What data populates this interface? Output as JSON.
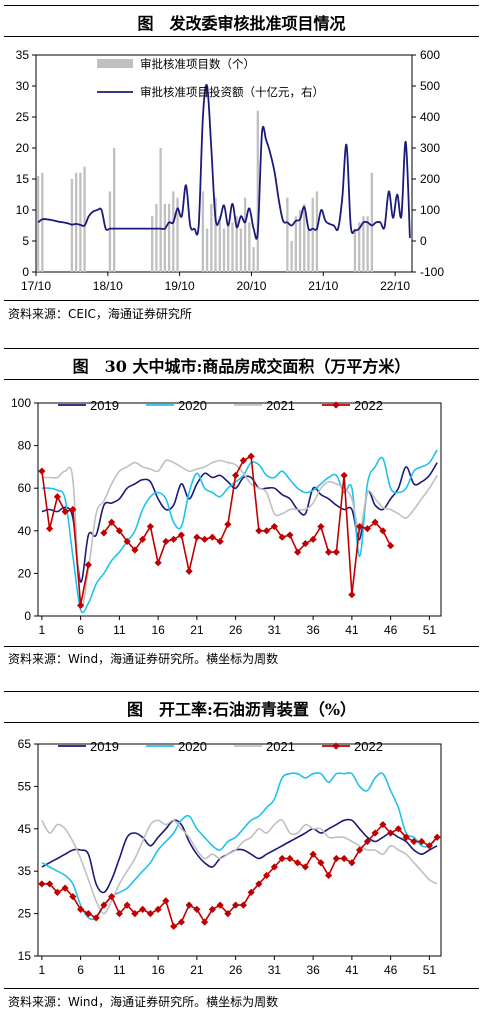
{
  "charts": [
    {
      "title": "图　发改委审核批准项目情况",
      "source": "资料来源：CEIC，海通证券研究所",
      "chart_data": {
        "type": "bar+line",
        "x_ticks": [
          "17/10",
          "18/10",
          "19/10",
          "20/10",
          "21/10",
          "22/10"
        ],
        "y_left": {
          "min": 0,
          "max": 35,
          "ticks": [
            "0",
            "5",
            "10",
            "15",
            "20",
            "25",
            "30",
            "35"
          ]
        },
        "y_right": {
          "min": -100,
          "max": 600,
          "ticks": [
            "-100",
            "0",
            "100",
            "200",
            "300",
            "400",
            "500",
            "600"
          ]
        },
        "legend": [
          "审批核准项目数（个）",
          "审批核准项目投资额（十亿元，右）"
        ],
        "bar_color": "#c0c0c0",
        "line_color": "#1a1a7a",
        "bars": [
          15.5,
          16,
          null,
          null,
          null,
          null,
          null,
          null,
          15,
          16,
          16,
          17,
          null,
          null,
          null,
          null,
          null,
          13,
          20,
          null,
          null,
          null,
          null,
          null,
          null,
          null,
          null,
          9,
          11,
          20,
          11,
          11,
          13,
          12,
          null,
          null,
          null,
          null,
          null,
          13,
          7,
          11,
          12,
          9,
          7,
          8,
          8,
          9,
          7,
          12,
          8,
          4,
          26,
          null,
          null,
          null,
          null,
          null,
          null,
          12,
          5,
          9,
          10,
          11,
          7,
          12,
          13,
          null,
          null,
          null,
          null,
          null,
          null,
          null,
          null,
          7,
          8,
          9,
          9,
          16,
          null,
          null
        ],
        "line": [
          60,
          70,
          70,
          68,
          65,
          62,
          60,
          57,
          53,
          55,
          52,
          50,
          80,
          95,
          100,
          100,
          40,
          40,
          40,
          40,
          40,
          40,
          40,
          40,
          40,
          40,
          40,
          40,
          40,
          40,
          40,
          60,
          60,
          105,
          80,
          180,
          50,
          40,
          50,
          400,
          500,
          300,
          70,
          70,
          115,
          50,
          120,
          45,
          80,
          60,
          105,
          40,
          30,
          350,
          325,
          280,
          220,
          130,
          65,
          60,
          50,
          65,
          70,
          110,
          40,
          40,
          40,
          100,
          65,
          55,
          50,
          40,
          140,
          310,
          50,
          35,
          40,
          60,
          60,
          50,
          60,
          60,
          45,
          160,
          75,
          150,
          80,
          320,
          10
        ],
        "line_ylim": [
          -100,
          600
        ]
      }
    },
    {
      "title": "图　30 大中城市:商品房成交面积（万平方米）",
      "source": "资料来源：Wind，海通证券研究所。横坐标为周数",
      "chart_data": {
        "type": "line",
        "ylim": [
          0,
          100
        ],
        "y_ticks": [
          "0",
          "20",
          "40",
          "60",
          "80",
          "100"
        ],
        "x_ticks": [
          "1",
          "6",
          "11",
          "16",
          "21",
          "26",
          "31",
          "36",
          "41",
          "46",
          "51"
        ],
        "series": [
          {
            "name": "2019",
            "color": "#1a1a7a",
            "values": [
              49,
              50,
              49,
              51,
              46,
              16,
              38,
              38,
              52,
              53,
              55,
              60,
              62,
              64,
              63,
              55,
              50,
              52,
              62,
              55,
              62,
              67,
              65,
              66,
              63,
              60,
              65,
              65,
              60,
              60,
              60,
              57,
              55,
              50,
              48,
              60,
              57,
              55,
              52,
              50,
              50,
              36,
              58,
              52,
              50,
              55,
              60,
              70,
              62,
              63,
              66,
              72
            ]
          },
          {
            "name": "2020",
            "color": "#1fc2ee",
            "values": [
              60,
              60,
              59,
              55,
              28,
              3,
              6,
              15,
              20,
              26,
              30,
              35,
              40,
              50,
              56,
              58,
              55,
              44,
              42,
              58,
              67,
              60,
              58,
              56,
              60,
              63,
              66,
              72,
              71,
              66,
              65,
              68,
              64,
              60,
              58,
              59,
              62,
              65,
              66,
              58,
              60,
              28,
              62,
              70,
              74,
              60,
              58,
              60,
              68,
              70,
              72,
              78
            ]
          },
          {
            "name": "2021",
            "color": "#c0c0c0",
            "values": [
              65,
              65,
              65,
              68,
              64,
              6,
              22,
              48,
              54,
              62,
              68,
              70,
              72,
              70,
              69,
              68,
              73,
              72,
              70,
              68,
              69,
              70,
              72,
              73,
              72,
              71,
              67,
              62,
              60,
              58,
              48,
              48,
              50,
              50,
              50,
              53,
              60,
              63,
              62,
              60,
              55,
              40,
              58,
              55,
              51,
              50,
              48,
              46,
              50,
              55,
              60,
              66
            ]
          },
          {
            "name": "2022",
            "color": "#c00000",
            "values": [
              68,
              41,
              56,
              49,
              50,
              5,
              24,
              null,
              39,
              44,
              40,
              35,
              31,
              36,
              42,
              25,
              35,
              36,
              38,
              21,
              37,
              36,
              37,
              35,
              43,
              66,
              73,
              75,
              40,
              40,
              42,
              37,
              38,
              30,
              34,
              36,
              42,
              30,
              30,
              66,
              10,
              42,
              41,
              44,
              40,
              33
            ]
          }
        ]
      }
    },
    {
      "title": "图　开工率:石油沥青装置（%）",
      "source": "资料来源：Wind，海通证券研究所。横坐标为周数",
      "chart_data": {
        "type": "line",
        "ylim": [
          15,
          65
        ],
        "y_ticks": [
          "15",
          "25",
          "35",
          "45",
          "55",
          "65"
        ],
        "x_ticks": [
          "1",
          "6",
          "11",
          "16",
          "21",
          "26",
          "31",
          "36",
          "41",
          "46",
          "51"
        ],
        "series": [
          {
            "name": "2019",
            "color": "#1a1a7a",
            "values": [
              36,
              37,
              38,
              39,
              40,
              40,
              39,
              32,
              30,
              33,
              38,
              43,
              44,
              43,
              41,
              43,
              45,
              47,
              46,
              42,
              39,
              37,
              36,
              38,
              39,
              40,
              40,
              39,
              38,
              39,
              40,
              41,
              42,
              43,
              44,
              45,
              44,
              45,
              46,
              47,
              47,
              45,
              43,
              42,
              43,
              44,
              43,
              42,
              40,
              39,
              40,
              41
            ]
          },
          {
            "name": "2020",
            "color": "#1fc2ee",
            "values": [
              37,
              36,
              35,
              34,
              32,
              27,
              24,
              24,
              27,
              29,
              30,
              31,
              33,
              35,
              37,
              40,
              42,
              44,
              47,
              48,
              45,
              43,
              41,
              40,
              42,
              43,
              45,
              47,
              48,
              50,
              52,
              57,
              58,
              58,
              57,
              58,
              58,
              56,
              58,
              58,
              58,
              55,
              54,
              57,
              58,
              54,
              50,
              44,
              43,
              41,
              41,
              43
            ]
          },
          {
            "name": "2021",
            "color": "#c0c0c0",
            "values": [
              47,
              44,
              46,
              45,
              42,
              38,
              33,
              28,
              25,
              28,
              32,
              35,
              38,
              42,
              46,
              47,
              46,
              47,
              45,
              43,
              40,
              38,
              39,
              38,
              39,
              40,
              42,
              43,
              45,
              44,
              46,
              47,
              44,
              44,
              46,
              45,
              45,
              43,
              43,
              43,
              42,
              41,
              40,
              40,
              39,
              41,
              40,
              39,
              37,
              35,
              33,
              32
            ]
          },
          {
            "name": "2022",
            "color": "#c00000",
            "values": [
              32,
              32,
              30,
              31,
              29,
              26,
              25,
              24,
              27,
              29,
              25,
              27,
              25,
              26,
              25,
              26,
              28,
              22,
              23,
              27,
              26,
              23,
              26,
              27,
              25,
              27,
              27,
              30,
              32,
              34,
              36,
              38,
              38,
              37,
              36,
              39,
              37,
              34,
              38,
              38,
              37,
              40,
              42,
              44,
              46,
              44,
              45,
              43,
              42,
              42,
              41,
              43
            ]
          }
        ]
      }
    }
  ]
}
